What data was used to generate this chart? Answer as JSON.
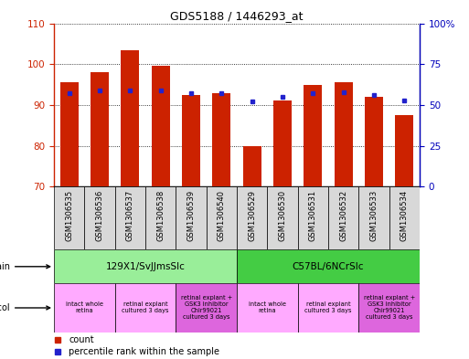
{
  "title": "GDS5188 / 1446293_at",
  "samples": [
    "GSM1306535",
    "GSM1306536",
    "GSM1306537",
    "GSM1306538",
    "GSM1306539",
    "GSM1306540",
    "GSM1306529",
    "GSM1306530",
    "GSM1306531",
    "GSM1306532",
    "GSM1306533",
    "GSM1306534"
  ],
  "count_values": [
    95.5,
    98.0,
    103.5,
    99.5,
    92.5,
    93.0,
    80.0,
    91.0,
    95.0,
    95.5,
    92.0,
    87.5
  ],
  "percentile_values": [
    57,
    59,
    59,
    59,
    57,
    57,
    52,
    55,
    57,
    58,
    56,
    53
  ],
  "ylim_left": [
    70,
    110
  ],
  "ylim_right": [
    0,
    100
  ],
  "yticks_left": [
    70,
    80,
    90,
    100,
    110
  ],
  "yticks_right": [
    0,
    25,
    50,
    75,
    100
  ],
  "ytick_labels_right": [
    "0",
    "25",
    "50",
    "75",
    "100%"
  ],
  "bar_color": "#cc2200",
  "dot_color": "#2222cc",
  "strain_groups": [
    {
      "label": "129X1/SvJJmsSlc",
      "start": 0,
      "end": 6,
      "color": "#99ee99"
    },
    {
      "label": "C57BL/6NCrSlc",
      "start": 6,
      "end": 12,
      "color": "#44cc44"
    }
  ],
  "protocol_groups": [
    {
      "label": "intact whole\nretina",
      "start": 0,
      "end": 2,
      "color": "#ffaaff"
    },
    {
      "label": "retinal explant\ncultured 3 days",
      "start": 2,
      "end": 4,
      "color": "#ffaaff"
    },
    {
      "label": "retinal explant +\nGSK3 inhibitor\nChir99021\ncultured 3 days",
      "start": 4,
      "end": 6,
      "color": "#dd66dd"
    },
    {
      "label": "intact whole\nretina",
      "start": 6,
      "end": 8,
      "color": "#ffaaff"
    },
    {
      "label": "retinal explant\ncultured 3 days",
      "start": 8,
      "end": 10,
      "color": "#ffaaff"
    },
    {
      "label": "retinal explant +\nGSK3 inhibitor\nChir99021\ncultured 3 days",
      "start": 10,
      "end": 12,
      "color": "#dd66dd"
    }
  ],
  "left_axis_color": "#cc2200",
  "right_axis_color": "#0000bb",
  "bar_width": 0.6,
  "tick_label_fontsize": 6.0,
  "title_fontsize": 9
}
